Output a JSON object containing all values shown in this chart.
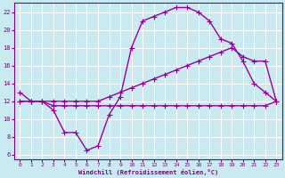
{
  "title": "",
  "xlabel": "Windchill (Refroidissement éolien,°C)",
  "ylabel": "",
  "bg_color": "#c8eaf0",
  "line_color": "#990099",
  "grid_color": "#ffffff",
  "xlim": [
    -0.5,
    23.5
  ],
  "ylim": [
    5.5,
    23
  ],
  "xticks": [
    0,
    1,
    2,
    3,
    4,
    5,
    6,
    7,
    8,
    9,
    10,
    11,
    12,
    13,
    14,
    15,
    16,
    17,
    18,
    19,
    20,
    21,
    22,
    23
  ],
  "yticks": [
    6,
    8,
    10,
    12,
    14,
    16,
    18,
    20,
    22
  ],
  "curve1_x": [
    0,
    1,
    2,
    3,
    4,
    5,
    6,
    7,
    8,
    9,
    10,
    11,
    12,
    13,
    14,
    15,
    16,
    17,
    18,
    19,
    20,
    21,
    22,
    23
  ],
  "curve1_y": [
    13,
    12,
    12,
    11,
    8.5,
    8.5,
    6.5,
    7,
    10.5,
    12.5,
    18,
    21,
    21.5,
    22,
    22.5,
    22.5,
    22,
    21,
    19,
    18.5,
    16.5,
    14,
    13,
    12
  ],
  "curve2_x": [
    0,
    1,
    2,
    3,
    4,
    5,
    6,
    7,
    8,
    9,
    10,
    11,
    12,
    13,
    14,
    15,
    16,
    17,
    18,
    19,
    20,
    21,
    22,
    23
  ],
  "curve2_y": [
    12,
    12,
    12,
    11.5,
    11.5,
    11.5,
    11.5,
    11.5,
    11.5,
    11.5,
    11.5,
    11.5,
    11.5,
    11.5,
    11.5,
    11.5,
    11.5,
    11.5,
    11.5,
    11.5,
    11.5,
    11.5,
    11.5,
    12
  ],
  "curve3_x": [
    0,
    1,
    2,
    3,
    4,
    5,
    6,
    7,
    8,
    9,
    10,
    11,
    12,
    13,
    14,
    15,
    16,
    17,
    18,
    19,
    20,
    21,
    22,
    23
  ],
  "curve3_y": [
    12,
    12,
    12,
    12,
    12,
    12,
    12,
    12,
    12.5,
    13,
    13.5,
    14,
    14.5,
    15,
    15.5,
    16,
    16.5,
    17,
    17.5,
    18,
    17,
    16.5,
    16.5,
    12
  ]
}
